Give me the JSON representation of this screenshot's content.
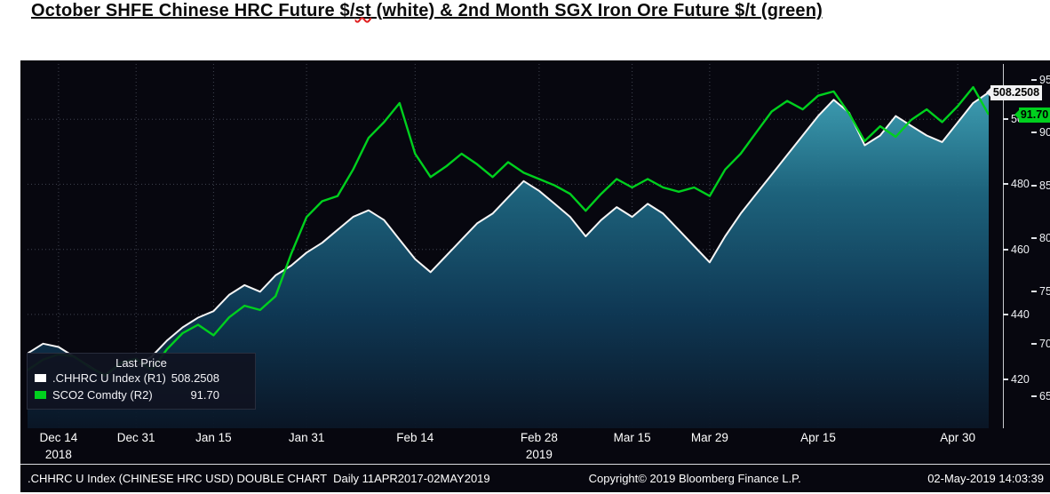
{
  "title": {
    "part1": "October SHFE Chinese HRC Future $/",
    "misspelled_word": "st",
    "part2": " (white) & 2nd Month SGX Iron Ore Future $/t (green)"
  },
  "chart": {
    "background": "#07070f",
    "legend": {
      "title": "Last Price",
      "series": [
        {
          "name": ".CHHRC U Index (R1)",
          "value": "508.2508",
          "swatch_color": "#ffffff"
        },
        {
          "name": "SCO2 Comdty (R2)",
          "value": "91.70",
          "swatch_color": "#00d01e"
        }
      ]
    },
    "price_labels": {
      "hrc": {
        "text": "508.2508",
        "bg": "#f2f2f4"
      },
      "iron_ore": {
        "text": "91.70",
        "bg": "#00d01e"
      }
    }
  },
  "chart_data": {
    "type": "line",
    "title": "October SHFE Chinese HRC Future $/st (white) & 2nd Month SGX Iron Ore Future $/t (green)",
    "grid": "dotted",
    "legend_position": "bottom-left",
    "x": [
      "Dec 10",
      "Dec 12",
      "Dec 14",
      "Dec 18",
      "Dec 20",
      "Dec 24",
      "Dec 27",
      "Dec 31",
      "Jan 3",
      "Jan 7",
      "Jan 9",
      "Jan 11",
      "Jan 15",
      "Jan 17",
      "Jan 21",
      "Jan 23",
      "Jan 25",
      "Jan 29",
      "Jan 31",
      "Feb 4",
      "Feb 6",
      "Feb 8",
      "Feb 11",
      "Feb 12",
      "Feb 13",
      "Feb 14",
      "Feb 15",
      "Feb 18",
      "Feb 19",
      "Feb 20",
      "Feb 22",
      "Feb 25",
      "Feb 27",
      "Feb 28",
      "Mar 4",
      "Mar 6",
      "Mar 8",
      "Mar 11",
      "Mar 13",
      "Mar 15",
      "Mar 19",
      "Mar 21",
      "Mar 25",
      "Mar 27",
      "Mar 29",
      "Apr 1",
      "Apr 3",
      "Apr 5",
      "Apr 8",
      "Apr 10",
      "Apr 12",
      "Apr 15",
      "Apr 16",
      "Apr 18",
      "Apr 22",
      "Apr 23",
      "Apr 24",
      "Apr 25",
      "Apr 26",
      "Apr 29",
      "Apr 30",
      "May 1",
      "May 2"
    ],
    "series": [
      {
        "name": ".CHHRC U Index",
        "axis": "R1",
        "color": "#f5f5f5",
        "style": "area",
        "last_price": 508.2508,
        "values": [
          428,
          431,
          430,
          427,
          424,
          421,
          425,
          424,
          427,
          432,
          436,
          439,
          441,
          446,
          449,
          447,
          452,
          455,
          459,
          462,
          466,
          470,
          472,
          469,
          463,
          457,
          453,
          458,
          463,
          468,
          471,
          476,
          481,
          478,
          474,
          470,
          464,
          469,
          473,
          470,
          474,
          471,
          466,
          461,
          456,
          464,
          471,
          477,
          483,
          489,
          495,
          501,
          506,
          502,
          492,
          495,
          501,
          498,
          495,
          493,
          499,
          505,
          508.25
        ]
      },
      {
        "name": "SCO2 Comdty",
        "axis": "R2",
        "color": "#00d01e",
        "style": "line",
        "last_price": 91.7,
        "values": [
          67.5,
          68.5,
          69.0,
          68.8,
          67.8,
          67.0,
          68.2,
          68.6,
          67.5,
          69.5,
          71.0,
          71.8,
          70.8,
          72.5,
          73.6,
          73.2,
          74.5,
          78.5,
          82.0,
          83.5,
          84.0,
          86.5,
          89.5,
          91.0,
          92.8,
          88.0,
          85.8,
          86.8,
          88.0,
          87.0,
          85.8,
          87.2,
          86.2,
          85.6,
          85.0,
          84.2,
          82.6,
          84.2,
          85.6,
          84.8,
          85.6,
          84.8,
          84.4,
          84.8,
          84.0,
          86.5,
          88.0,
          90.0,
          92.0,
          93.0,
          92.2,
          93.5,
          93.9,
          91.8,
          89.2,
          90.6,
          89.6,
          91.2,
          92.2,
          91.0,
          92.5,
          94.3,
          91.7
        ]
      }
    ],
    "right_axis_1": {
      "label_values": [
        500,
        480,
        460,
        440,
        420
      ],
      "range": [
        405,
        517
      ]
    },
    "right_axis_2": {
      "label_values": [
        95,
        90,
        85,
        80,
        75,
        70,
        65
      ],
      "range": [
        62,
        96.5
      ]
    },
    "x_ticks": [
      {
        "label": "Dec 14",
        "index": 2,
        "year": "2018"
      },
      {
        "label": "Dec 31",
        "index": 7
      },
      {
        "label": "Jan 15",
        "index": 12
      },
      {
        "label": "Jan 31",
        "index": 18
      },
      {
        "label": "Feb 14",
        "index": 25
      },
      {
        "label": "Feb 28",
        "index": 33,
        "year": "2019"
      },
      {
        "label": "Mar 15",
        "index": 39
      },
      {
        "label": "Mar 29",
        "index": 44
      },
      {
        "label": "Apr 15",
        "index": 51
      },
      {
        "label": "Apr 30",
        "index": 60
      }
    ]
  },
  "status_bar": {
    "left": ".CHHRC U Index (CHINESE HRC USD) DOUBLE CHART  Daily 11APR2017-02MAY2019",
    "center": "Copyright© 2019 Bloomberg Finance L.P.",
    "right": "02-May-2019 14:03:39"
  }
}
